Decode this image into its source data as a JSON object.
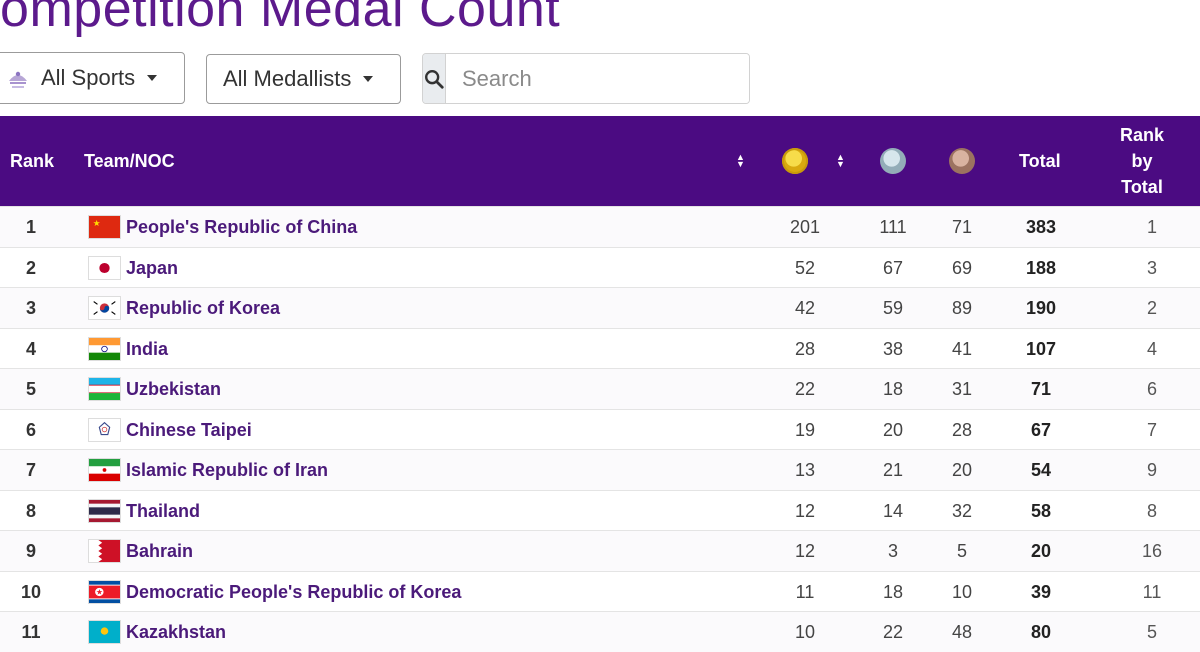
{
  "page": {
    "title": "Competition Medal Count"
  },
  "filters": {
    "sports_label": "All Sports",
    "medallists_label": "All Medallists",
    "search_placeholder": "Search"
  },
  "icons": {
    "sports": "games-logo-icon",
    "search": "search-icon",
    "caret": "caret-down-icon",
    "sort": "sort-icon"
  },
  "colors": {
    "header_bg": "#4b0b82",
    "title": "#5c1a8c",
    "gold": "#e6c11d",
    "silver": "#a9c2cc",
    "bronze": "#b98e78"
  },
  "table": {
    "headers": {
      "rank": "Rank",
      "team": "Team/NOC",
      "total": "Total",
      "rank_by_total_1": "Rank",
      "rank_by_total_2": "by",
      "rank_by_total_3": "Total"
    },
    "rows": [
      {
        "rank": "1",
        "team": "People's Republic of China",
        "gold": "201",
        "silver": "111",
        "bronze": "71",
        "total": "383",
        "rank_by_total": "1",
        "flag": "china-flag-icon"
      },
      {
        "rank": "2",
        "team": "Japan",
        "gold": "52",
        "silver": "67",
        "bronze": "69",
        "total": "188",
        "rank_by_total": "3",
        "flag": "japan-flag-icon"
      },
      {
        "rank": "3",
        "team": "Republic of Korea",
        "gold": "42",
        "silver": "59",
        "bronze": "89",
        "total": "190",
        "rank_by_total": "2",
        "flag": "korea-flag-icon"
      },
      {
        "rank": "4",
        "team": "India",
        "gold": "28",
        "silver": "38",
        "bronze": "41",
        "total": "107",
        "rank_by_total": "4",
        "flag": "india-flag-icon"
      },
      {
        "rank": "5",
        "team": "Uzbekistan",
        "gold": "22",
        "silver": "18",
        "bronze": "31",
        "total": "71",
        "rank_by_total": "6",
        "flag": "uzbekistan-flag-icon"
      },
      {
        "rank": "6",
        "team": "Chinese Taipei",
        "gold": "19",
        "silver": "20",
        "bronze": "28",
        "total": "67",
        "rank_by_total": "7",
        "flag": "chinese-taipei-flag-icon"
      },
      {
        "rank": "7",
        "team": "Islamic Republic of Iran",
        "gold": "13",
        "silver": "21",
        "bronze": "20",
        "total": "54",
        "rank_by_total": "9",
        "flag": "iran-flag-icon"
      },
      {
        "rank": "8",
        "team": "Thailand",
        "gold": "12",
        "silver": "14",
        "bronze": "32",
        "total": "58",
        "rank_by_total": "8",
        "flag": "thailand-flag-icon"
      },
      {
        "rank": "9",
        "team": "Bahrain",
        "gold": "12",
        "silver": "3",
        "bronze": "5",
        "total": "20",
        "rank_by_total": "16",
        "flag": "bahrain-flag-icon"
      },
      {
        "rank": "10",
        "team": "Democratic People's Republic of Korea",
        "gold": "11",
        "silver": "18",
        "bronze": "10",
        "total": "39",
        "rank_by_total": "11",
        "flag": "dprk-flag-icon"
      },
      {
        "rank": "11",
        "team": "Kazakhstan",
        "gold": "10",
        "silver": "22",
        "bronze": "48",
        "total": "80",
        "rank_by_total": "5",
        "flag": "kazakhstan-flag-icon"
      }
    ]
  }
}
